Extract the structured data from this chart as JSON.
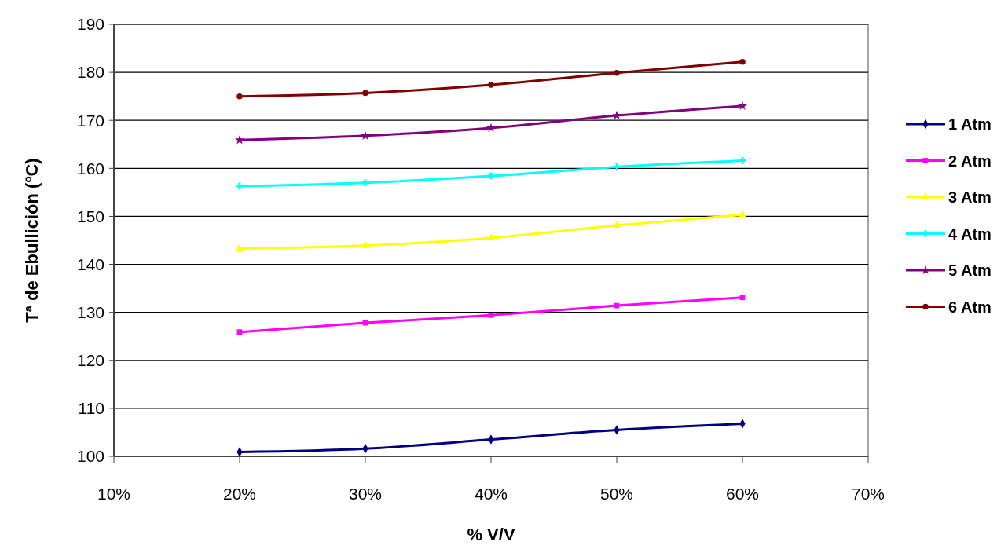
{
  "chart_data": {
    "type": "line",
    "xlabel": "% V/V",
    "ylabel": "Tª de Ebullición (ºC)",
    "x": [
      20,
      30,
      40,
      50,
      60
    ],
    "xlim": [
      10,
      70
    ],
    "xticks": [
      {
        "value": 10,
        "label": "10%"
      },
      {
        "value": 20,
        "label": "20%"
      },
      {
        "value": 30,
        "label": "30%"
      },
      {
        "value": 40,
        "label": "40%"
      },
      {
        "value": 50,
        "label": "50%"
      },
      {
        "value": 60,
        "label": "60%"
      },
      {
        "value": 70,
        "label": "70%"
      }
    ],
    "ylim": [
      100,
      190
    ],
    "yticks": [
      100,
      110,
      120,
      130,
      140,
      150,
      160,
      170,
      180,
      190
    ],
    "grid": "y",
    "legend": "right",
    "line_style": "solid",
    "series": [
      {
        "name": "1 Atm",
        "color": "#000080",
        "marker": "diamond",
        "values": [
          100.9,
          101.6,
          103.5,
          105.5,
          106.8
        ]
      },
      {
        "name": "2 Atm",
        "color": "#ff00ff",
        "marker": "square",
        "values": [
          125.9,
          127.8,
          129.4,
          131.4,
          133.1
        ]
      },
      {
        "name": "3 Atm",
        "color": "#ffff00",
        "marker": "triangle",
        "values": [
          143.3,
          143.9,
          145.5,
          148.1,
          150.3
        ]
      },
      {
        "name": "4 Atm",
        "color": "#00ffff",
        "marker": "cross",
        "values": [
          156.3,
          157.0,
          158.4,
          160.3,
          161.6
        ]
      },
      {
        "name": "5 Atm",
        "color": "#800080",
        "marker": "star",
        "values": [
          165.9,
          166.8,
          168.4,
          171.0,
          173.0
        ]
      },
      {
        "name": "6 Atm",
        "color": "#800000",
        "marker": "circle",
        "values": [
          175.0,
          175.7,
          177.4,
          179.9,
          182.2
        ]
      }
    ]
  }
}
